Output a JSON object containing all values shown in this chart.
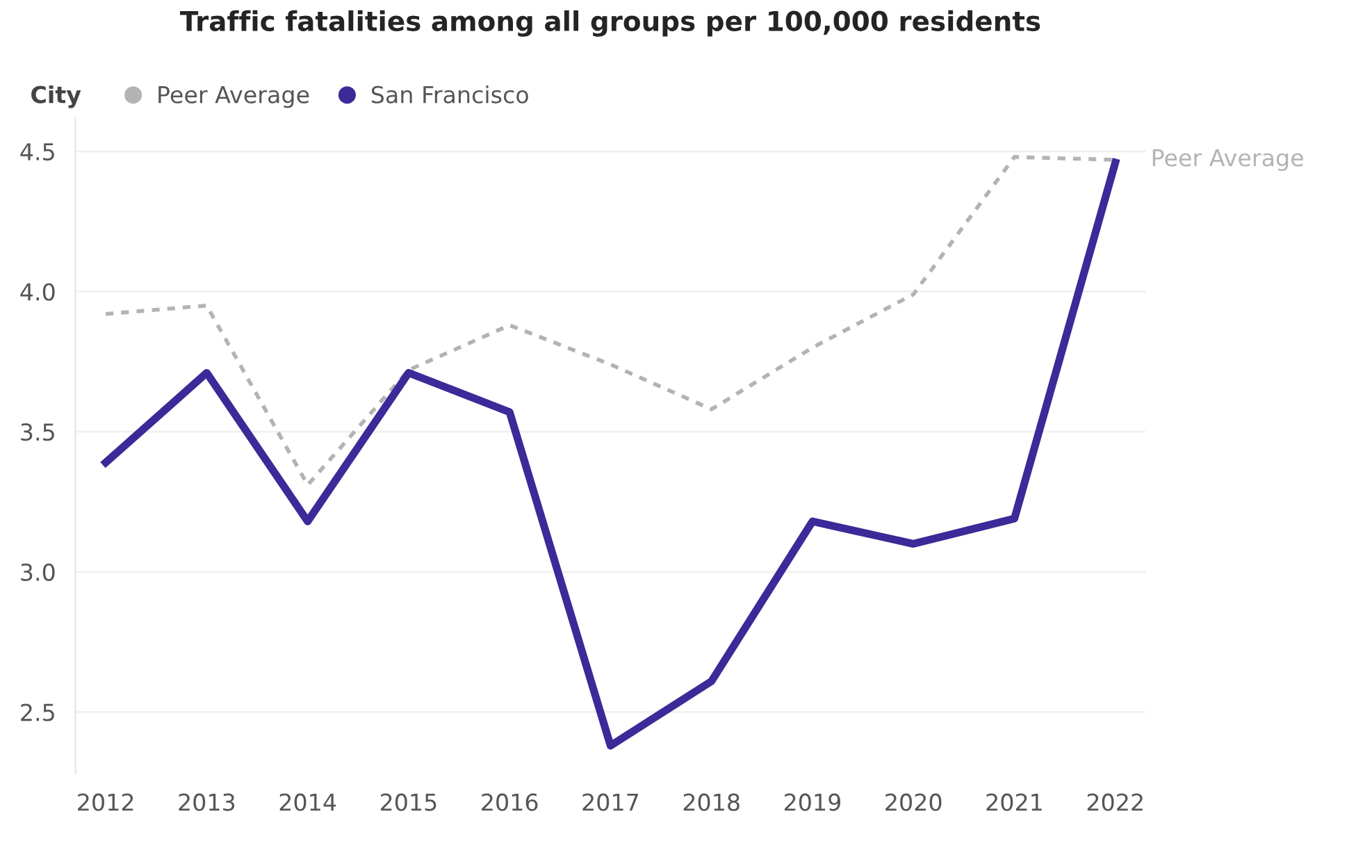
{
  "chart_data": {
    "type": "line",
    "title": "Traffic fatalities among all groups per 100,000 residents",
    "legend_title": "City",
    "categories": [
      "2012",
      "2013",
      "2014",
      "2015",
      "2016",
      "2017",
      "2018",
      "2019",
      "2020",
      "2021",
      "2022"
    ],
    "series": [
      {
        "name": "Peer Average",
        "color": "#b3b3b3",
        "line_style": "dashed",
        "values": [
          3.92,
          3.95,
          3.31,
          3.72,
          3.88,
          3.74,
          3.58,
          3.8,
          3.99,
          4.48,
          4.47
        ]
      },
      {
        "name": "San Francisco",
        "color": "#3b2a98",
        "line_style": "solid",
        "values": [
          3.39,
          3.71,
          3.18,
          3.71,
          3.57,
          2.38,
          2.61,
          3.18,
          3.1,
          3.19,
          4.46
        ]
      }
    ],
    "ylim": [
      2.28,
      4.62
    ],
    "yticks": [
      {
        "value": 2.5,
        "label": "2.5"
      },
      {
        "value": 3,
        "label": "3.0"
      },
      {
        "value": 3.5,
        "label": "3.5"
      },
      {
        "value": 4,
        "label": "4.0"
      },
      {
        "value": 4.5,
        "label": "4.5"
      }
    ],
    "grid": "y",
    "legend": "top left",
    "marker": "none"
  }
}
